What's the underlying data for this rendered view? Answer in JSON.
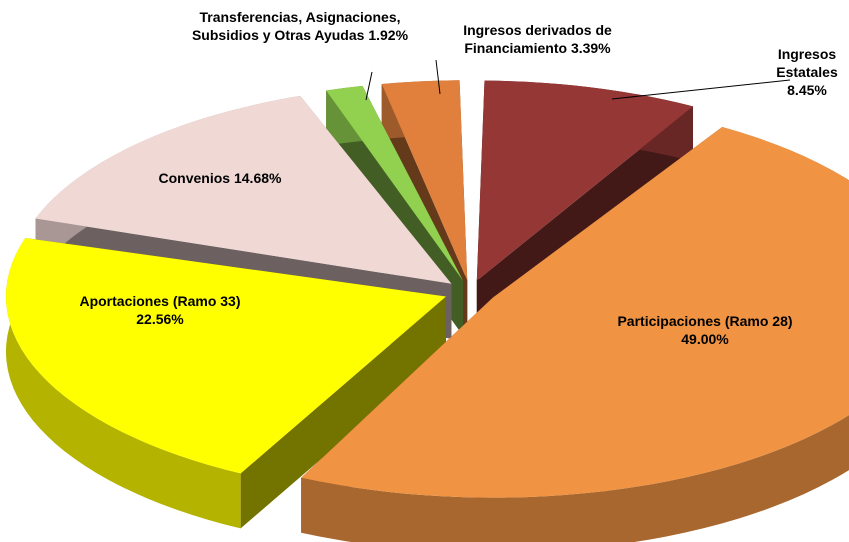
{
  "chart_data": {
    "type": "pie3d",
    "categories": [
      "Ingresos Estatales",
      "Participaciones (Ramo 28)",
      "Aportaciones (Ramo 33)",
      "Convenios",
      "Transferencias, Asignaciones, Subsidios y Otras Ayudas",
      "Ingresos derivados de Financiamiento"
    ],
    "values": [
      8.45,
      49.0,
      22.56,
      14.68,
      1.92,
      3.39
    ],
    "value_labels": [
      "8.45%",
      "49.00%",
      "22.56%",
      "14.68%",
      "1.92%",
      "3.39%"
    ],
    "colors": [
      "#953735",
      "#f09343",
      "#ffff00",
      "#f0d8d5",
      "#92d050",
      "#e0803c"
    ]
  }
}
